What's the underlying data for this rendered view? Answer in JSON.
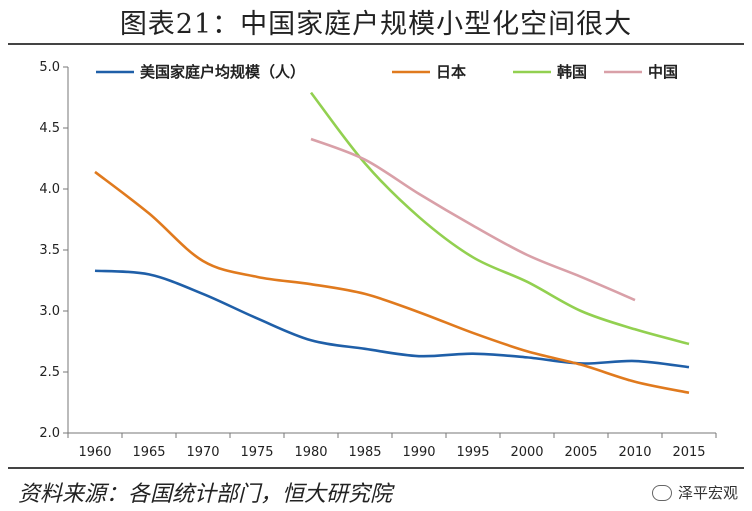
{
  "header": {
    "title": "图表21：中国家庭户规模小型化空间很大"
  },
  "footer": {
    "source": "资料来源：各国统计部门，恒大研究院",
    "watermark": "泽平宏观",
    "watermark_icon": "wechat-icon"
  },
  "chart_data": {
    "type": "line",
    "x": [
      1960,
      1965,
      1970,
      1975,
      1980,
      1985,
      1990,
      1995,
      2000,
      2005,
      2010,
      2015
    ],
    "xlim": [
      1957.5,
      2017.5
    ],
    "ylim": [
      2.0,
      5.0
    ],
    "yticks": [
      "2.0",
      "2.5",
      "3.0",
      "3.5",
      "4.0",
      "4.5",
      "5.0"
    ],
    "xlabel": "",
    "ylabel": "",
    "grid": false,
    "legend": "top",
    "series": [
      {
        "name": "美国家庭户均规模（人）",
        "color": "#1f5fa8",
        "points": [
          [
            1960,
            3.33
          ],
          [
            1965,
            3.3
          ],
          [
            1970,
            3.14
          ],
          [
            1975,
            2.94
          ],
          [
            1980,
            2.76
          ],
          [
            1985,
            2.69
          ],
          [
            1990,
            2.63
          ],
          [
            1995,
            2.65
          ],
          [
            2000,
            2.62
          ],
          [
            2005,
            2.57
          ],
          [
            2010,
            2.59
          ],
          [
            2015,
            2.54
          ]
        ]
      },
      {
        "name": "日本",
        "color": "#e07a1e",
        "points": [
          [
            1960,
            4.14
          ],
          [
            1965,
            3.8
          ],
          [
            1970,
            3.41
          ],
          [
            1975,
            3.28
          ],
          [
            1980,
            3.22
          ],
          [
            1985,
            3.14
          ],
          [
            1990,
            2.99
          ],
          [
            1995,
            2.82
          ],
          [
            2000,
            2.67
          ],
          [
            2005,
            2.56
          ],
          [
            2010,
            2.42
          ],
          [
            2015,
            2.33
          ]
        ]
      },
      {
        "name": "韩国",
        "color": "#92d050",
        "points": [
          [
            1980,
            4.79
          ],
          [
            1985,
            4.21
          ],
          [
            1990,
            3.77
          ],
          [
            1995,
            3.44
          ],
          [
            2000,
            3.24
          ],
          [
            2005,
            3.0
          ],
          [
            2010,
            2.85
          ],
          [
            2015,
            2.73
          ]
        ]
      },
      {
        "name": "中国",
        "color": "#d9a0a8",
        "points": [
          [
            1980,
            4.41
          ],
          [
            1985,
            4.24
          ],
          [
            1990,
            3.96
          ],
          [
            1995,
            3.7
          ],
          [
            2000,
            3.46
          ],
          [
            2005,
            3.28
          ],
          [
            2010,
            3.09
          ]
        ]
      }
    ]
  }
}
